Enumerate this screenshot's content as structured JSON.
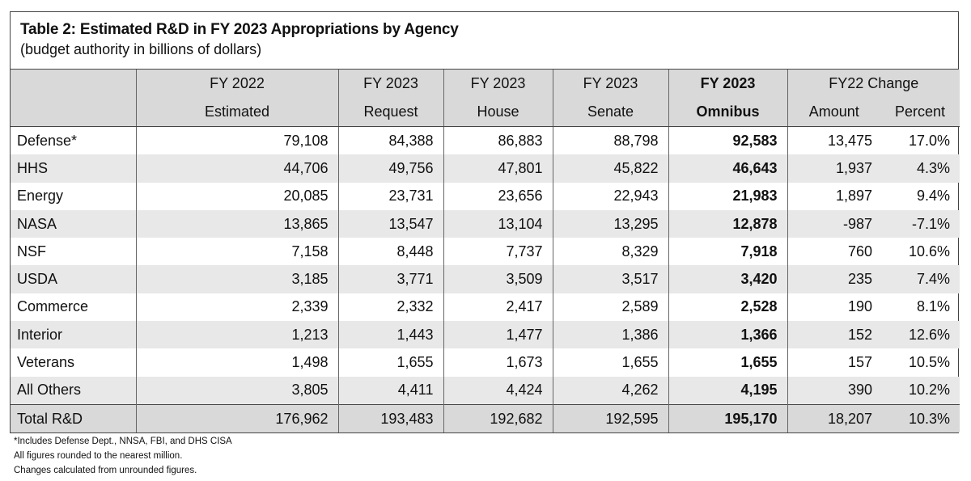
{
  "title": "Table 2: Estimated R&D in FY 2023 Appropriations by Agency",
  "subtitle": "(budget authority in billions of dollars)",
  "headers": {
    "fy2022": [
      "FY 2022",
      "Estimated"
    ],
    "fy2023_request": [
      "FY 2023",
      "Request"
    ],
    "fy2023_house": [
      "FY 2023",
      "House"
    ],
    "fy2023_senate": [
      "FY 2023",
      "Senate"
    ],
    "fy2023_omnibus": [
      "FY 2023",
      "Omnibus"
    ],
    "fy22_change": "FY22 Change",
    "amount": "Amount",
    "percent": "Percent"
  },
  "rows": [
    [
      "Defense*",
      "79,108",
      "84,388",
      "86,883",
      "88,798",
      "92,583",
      "13,475",
      "17.0%"
    ],
    [
      "HHS",
      "44,706",
      "49,756",
      "47,801",
      "45,822",
      "46,643",
      "1,937",
      "4.3%"
    ],
    [
      "Energy",
      "20,085",
      "23,731",
      "23,656",
      "22,943",
      "21,983",
      "1,897",
      "9.4%"
    ],
    [
      "NASA",
      "13,865",
      "13,547",
      "13,104",
      "13,295",
      "12,878",
      "-987",
      "-7.1%"
    ],
    [
      "NSF",
      "7,158",
      "8,448",
      "7,737",
      "8,329",
      "7,918",
      "760",
      "10.6%"
    ],
    [
      "USDA",
      "3,185",
      "3,771",
      "3,509",
      "3,517",
      "3,420",
      "235",
      "7.4%"
    ],
    [
      "Commerce",
      "2,339",
      "2,332",
      "2,417",
      "2,589",
      "2,528",
      "190",
      "8.1%"
    ],
    [
      "Interior",
      "1,213",
      "1,443",
      "1,477",
      "1,386",
      "1,366",
      "152",
      "12.6%"
    ],
    [
      "Veterans",
      "1,498",
      "1,655",
      "1,673",
      "1,655",
      "1,655",
      "157",
      "10.5%"
    ],
    [
      "All Others",
      "3,805",
      "4,411",
      "4,424",
      "4,262",
      "4,195",
      "390",
      "10.2%"
    ]
  ],
  "total": [
    "Total R&D",
    "176,962",
    "193,483",
    "192,682",
    "192,595",
    "195,170",
    "18,207",
    "10.3%"
  ],
  "notes": [
    "*Includes Defense Dept., NNSA, FBI, and DHS CISA",
    "All figures rounded to the nearest million.",
    "Changes calculated from unrounded figures."
  ]
}
